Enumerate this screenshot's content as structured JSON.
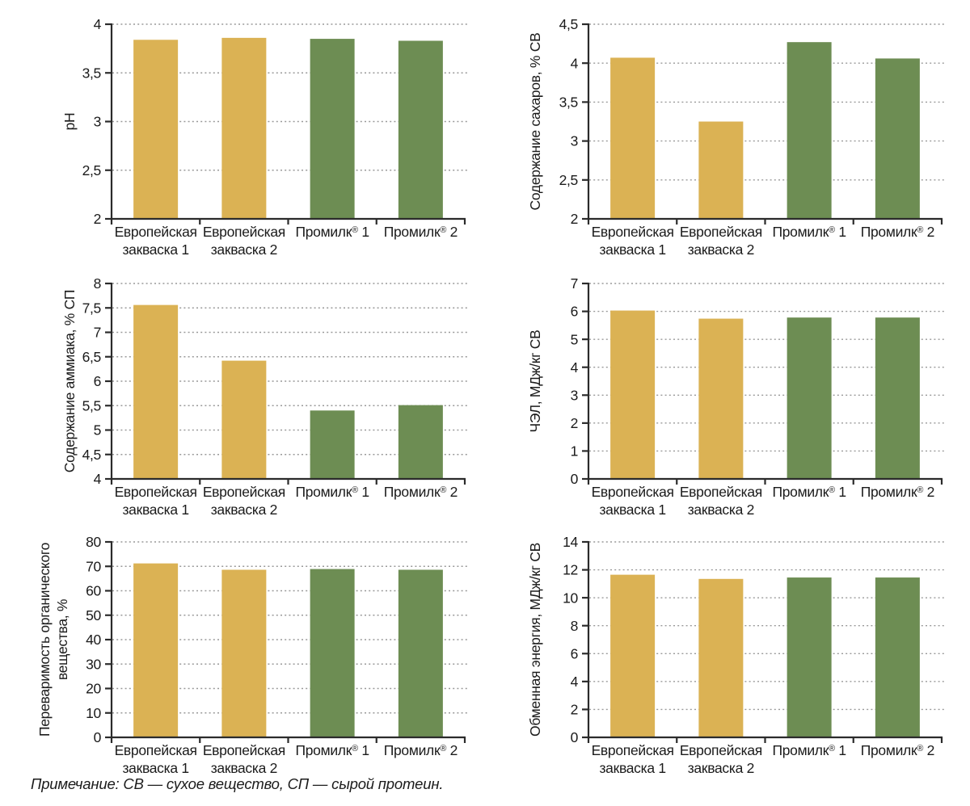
{
  "note": "Примечание: СВ — сухое вещество, СП — сырой протеин.",
  "categories": [
    "Европейская закваска 1",
    "Европейская закваска 2",
    "Промилк® 1",
    "Промилк® 2"
  ],
  "category_display_lines": [
    [
      "Европейская",
      "закваска 1"
    ],
    [
      "Европейская",
      "закваска 2"
    ],
    [
      "Промилк® 1"
    ],
    [
      "Промилк® 2"
    ]
  ],
  "colors": {
    "bar_european_starter": "#dbb254",
    "bar_promilk": "#6d8d53",
    "axis": "#2b2b2b",
    "grid": "#999999",
    "text": "#1b1b1b"
  },
  "chart_data": [
    {
      "type": "bar",
      "title": "",
      "xlabel": "",
      "ylabel": "pH",
      "ylabel_lines": [
        "pH"
      ],
      "ymin": 2,
      "ymax": 4,
      "ytick_labels": [
        "2",
        "2,5",
        "3",
        "3,5",
        "4"
      ],
      "categories": [
        "Европейская закваска 1",
        "Европейская закваска 2",
        "Промилк® 1",
        "Промилк® 2"
      ],
      "values": [
        3.84,
        3.86,
        3.85,
        3.83
      ],
      "series_colors": [
        "bar_european_starter",
        "bar_european_starter",
        "bar_promilk",
        "bar_promilk"
      ],
      "grid": "dotted-horizontal",
      "legend": "none"
    },
    {
      "type": "bar",
      "title": "",
      "xlabel": "",
      "ylabel": "Содержание сахаров, % СВ",
      "ylabel_lines": [
        "Содержание сахаров, % СВ"
      ],
      "ymin": 2,
      "ymax": 4.5,
      "ytick_labels": [
        "2",
        "2,5",
        "3",
        "3,5",
        "4",
        "4,5"
      ],
      "categories": [
        "Европейская закваска 1",
        "Европейская закваска 2",
        "Промилк® 1",
        "Промилк® 2"
      ],
      "values": [
        4.07,
        3.25,
        4.27,
        4.06
      ],
      "series_colors": [
        "bar_european_starter",
        "bar_european_starter",
        "bar_promilk",
        "bar_promilk"
      ],
      "grid": "dotted-horizontal",
      "legend": "none"
    },
    {
      "type": "bar",
      "title": "",
      "xlabel": "",
      "ylabel": "Содержание аммиака, % СП",
      "ylabel_lines": [
        "Содержание аммиака, % СП"
      ],
      "ymin": 4,
      "ymax": 8,
      "ytick_labels": [
        "4",
        "4,5",
        "5",
        "5,5",
        "6",
        "6,5",
        "7",
        "7,5",
        "8"
      ],
      "categories": [
        "Европейская закваска 1",
        "Европейская закваска 2",
        "Промилк® 1",
        "Промилк® 2"
      ],
      "values": [
        7.56,
        6.42,
        5.4,
        5.51
      ],
      "series_colors": [
        "bar_european_starter",
        "bar_european_starter",
        "bar_promilk",
        "bar_promilk"
      ],
      "grid": "dotted-horizontal",
      "legend": "none"
    },
    {
      "type": "bar",
      "title": "",
      "xlabel": "",
      "ylabel": "ЧЭЛ, МДж/кг СВ",
      "ylabel_lines": [
        "ЧЭЛ, МДж/кг СВ"
      ],
      "ymin": 0,
      "ymax": 7,
      "ytick_labels": [
        "0",
        "1",
        "2",
        "3",
        "4",
        "5",
        "6",
        "7"
      ],
      "categories": [
        "Европейская закваска 1",
        "Европейская закваска 2",
        "Промилк® 1",
        "Промилк® 2"
      ],
      "values": [
        6.03,
        5.74,
        5.78,
        5.78
      ],
      "series_colors": [
        "bar_european_starter",
        "bar_european_starter",
        "bar_promilk",
        "bar_promilk"
      ],
      "grid": "dotted-horizontal",
      "legend": "none"
    },
    {
      "type": "bar",
      "title": "",
      "xlabel": "",
      "ylabel": "Переваримость органического вещества, %",
      "ylabel_lines": [
        "Переваримость органического",
        "вещества, %"
      ],
      "ymin": 0,
      "ymax": 80,
      "ytick_labels": [
        "0",
        "10",
        "20",
        "30",
        "40",
        "50",
        "60",
        "70",
        "80"
      ],
      "categories": [
        "Европейская закваска 1",
        "Европейская закваска 2",
        "Промилк® 1",
        "Промилк® 2"
      ],
      "values": [
        71.2,
        68.6,
        68.9,
        68.6
      ],
      "series_colors": [
        "bar_european_starter",
        "bar_european_starter",
        "bar_promilk",
        "bar_promilk"
      ],
      "grid": "dotted-horizontal",
      "legend": "none"
    },
    {
      "type": "bar",
      "title": "",
      "xlabel": "",
      "ylabel": "Обменная энергия, МДж/кг СВ",
      "ylabel_lines": [
        "Обменная энергия, МДж/кг СВ"
      ],
      "ymin": 0,
      "ymax": 14,
      "ytick_labels": [
        "0",
        "2",
        "4",
        "6",
        "8",
        "10",
        "12",
        "14"
      ],
      "categories": [
        "Европейская закваска 1",
        "Европейская закваска 2",
        "Промилк® 1",
        "Промилк® 2"
      ],
      "values": [
        11.65,
        11.35,
        11.45,
        11.45
      ],
      "series_colors": [
        "bar_european_starter",
        "bar_european_starter",
        "bar_promilk",
        "bar_promilk"
      ],
      "grid": "dotted-horizontal",
      "legend": "none"
    }
  ]
}
